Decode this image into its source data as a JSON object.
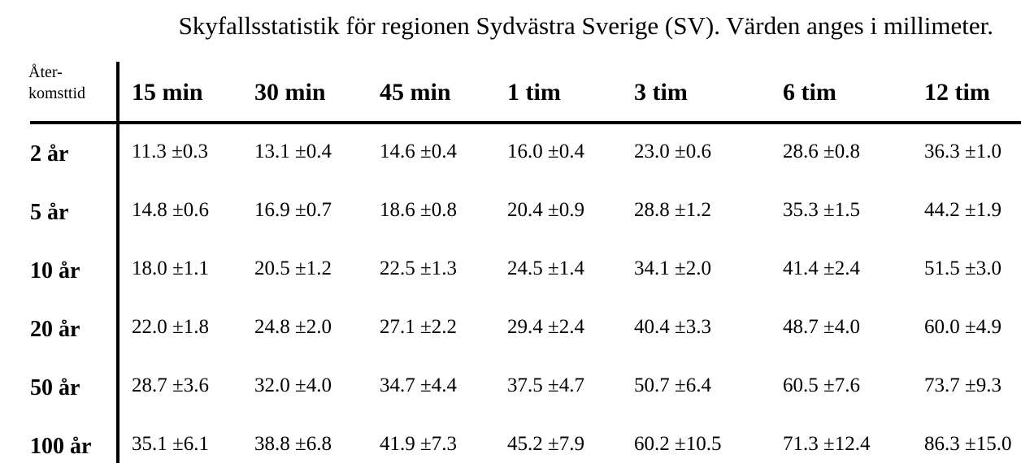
{
  "title": "Skyfallsstatistik för regionen Sydvästra Sverige (SV). Värden anges i millimeter.",
  "corner_label": [
    "Åter-",
    "komsttid"
  ],
  "columns": [
    "15 min",
    "30 min",
    "45 min",
    "1 tim",
    "3 tim",
    "6 tim",
    "12 tim"
  ],
  "rows": [
    {
      "label": "2 år",
      "cells": [
        "11.3 ±0.3",
        "13.1 ±0.4",
        "14.6 ±0.4",
        "16.0 ±0.4",
        "23.0 ±0.6",
        "28.6 ±0.8",
        "36.3 ±1.0"
      ]
    },
    {
      "label": "5 år",
      "cells": [
        "14.8 ±0.6",
        "16.9 ±0.7",
        "18.6 ±0.8",
        "20.4 ±0.9",
        "28.8 ±1.2",
        "35.3 ±1.5",
        "44.2 ±1.9"
      ]
    },
    {
      "label": "10 år",
      "cells": [
        "18.0 ±1.1",
        "20.5 ±1.2",
        "22.5 ±1.3",
        "24.5 ±1.4",
        "34.1 ±2.0",
        "41.4 ±2.4",
        "51.5 ±3.0"
      ]
    },
    {
      "label": "20 år",
      "cells": [
        "22.0 ±1.8",
        "24.8 ±2.0",
        "27.1 ±2.2",
        "29.4 ±2.4",
        "40.4 ±3.3",
        "48.7 ±4.0",
        "60.0 ±4.9"
      ]
    },
    {
      "label": "50 år",
      "cells": [
        "28.7 ±3.6",
        "32.0 ±4.0",
        "34.7 ±4.4",
        "37.5 ±4.7",
        "50.7 ±6.4",
        "60.5 ±7.6",
        "73.7 ±9.3"
      ]
    },
    {
      "label": "100 år",
      "cells": [
        "35.1 ±6.1",
        "38.8 ±6.8",
        "41.9 ±7.3",
        "45.2 ±7.9",
        "60.2 ±10.5",
        "71.3 ±12.4",
        "86.3 ±15.0"
      ]
    }
  ]
}
